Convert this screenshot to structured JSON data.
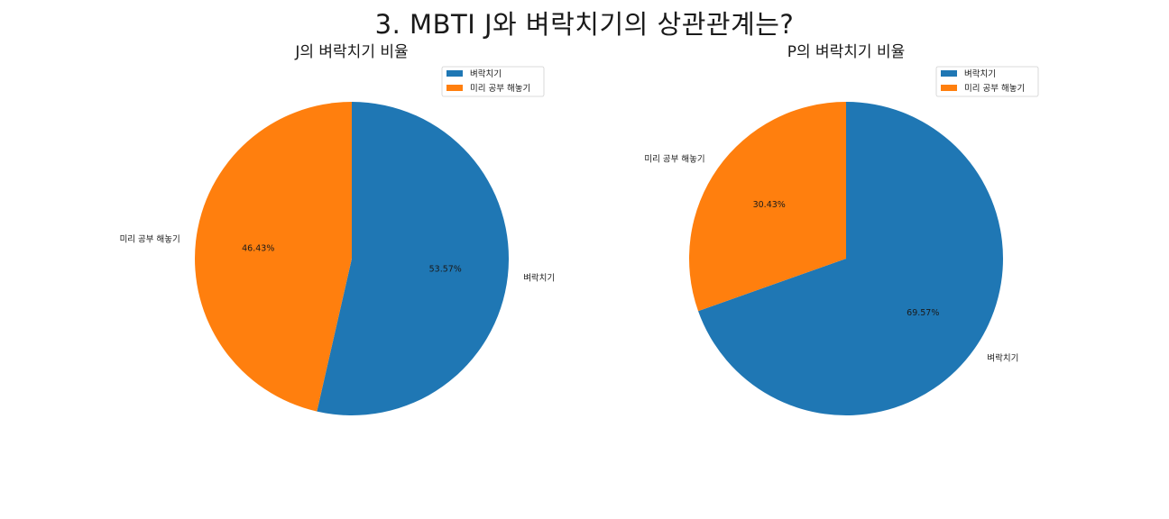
{
  "figure": {
    "title": "3. MBTI J와 벼락치기의 상관관계는?"
  },
  "colors": {
    "blue": "#1f77b4",
    "orange": "#ff7f0e"
  },
  "chart_data": [
    {
      "type": "pie",
      "title": "J의 벼락치기 비율",
      "labels": [
        "벼락치기",
        "미리 공부 해놓기"
      ],
      "values": [
        53.57,
        46.43
      ],
      "pct_labels": [
        "53.57%",
        "46.43%"
      ],
      "colors": [
        "#1f77b4",
        "#ff7f0e"
      ],
      "start_angle": 90,
      "direction": "clockwise",
      "legend": {
        "entries": [
          "벼락치기",
          "미리 공부 해놓기"
        ],
        "placement": "upper-right"
      }
    },
    {
      "type": "pie",
      "title": "P의 벼락치기 비율",
      "labels": [
        "벼락치기",
        "미리 공부 해놓기"
      ],
      "values": [
        69.57,
        30.43
      ],
      "pct_labels": [
        "69.57%",
        "30.43%"
      ],
      "colors": [
        "#1f77b4",
        "#ff7f0e"
      ],
      "start_angle": 90,
      "direction": "clockwise",
      "legend": {
        "entries": [
          "벼락치기",
          "미리 공부 해놓기"
        ],
        "placement": "upper-right"
      }
    }
  ]
}
